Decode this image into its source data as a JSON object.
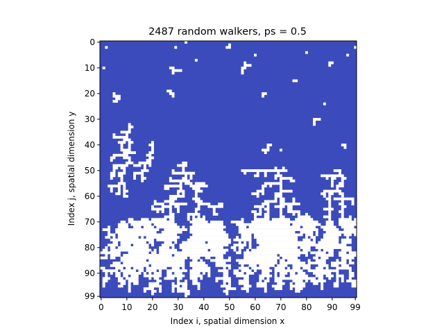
{
  "chart_data": {
    "type": "heatmap",
    "title": "2487 random walkers, ps = 0.5",
    "xlabel": "Index i, spatial dimension x",
    "ylabel": "Index j, spatial dimension y",
    "grid_size": [
      100,
      100
    ],
    "xlim": [
      0,
      99
    ],
    "ylim": [
      99,
      0
    ],
    "xticks": [
      0,
      10,
      20,
      30,
      40,
      50,
      60,
      70,
      80,
      90,
      99
    ],
    "yticks": [
      0,
      10,
      20,
      30,
      40,
      50,
      60,
      70,
      80,
      90,
      99
    ],
    "grid": false,
    "colors": {
      "background": "#3c4bbb",
      "occupied": "#ffffff"
    },
    "seeds": [
      [
        2,
        2
      ],
      [
        1,
        10
      ],
      [
        5,
        20
      ],
      [
        10,
        35
      ],
      [
        20,
        40
      ],
      [
        27,
        20
      ],
      [
        28,
        10
      ],
      [
        32,
        48
      ],
      [
        29,
        2
      ],
      [
        33,
        0
      ],
      [
        37,
        7
      ],
      [
        50,
        2
      ],
      [
        56,
        8
      ],
      [
        60,
        5
      ],
      [
        63,
        20
      ],
      [
        66,
        40
      ],
      [
        70,
        42
      ],
      [
        70,
        50
      ],
      [
        75,
        15
      ],
      [
        80,
        4
      ],
      [
        84,
        30
      ],
      [
        87,
        24
      ],
      [
        90,
        8
      ],
      [
        96,
        5
      ],
      [
        99,
        2
      ],
      [
        95,
        40
      ],
      [
        92,
        50
      ]
    ]
  }
}
